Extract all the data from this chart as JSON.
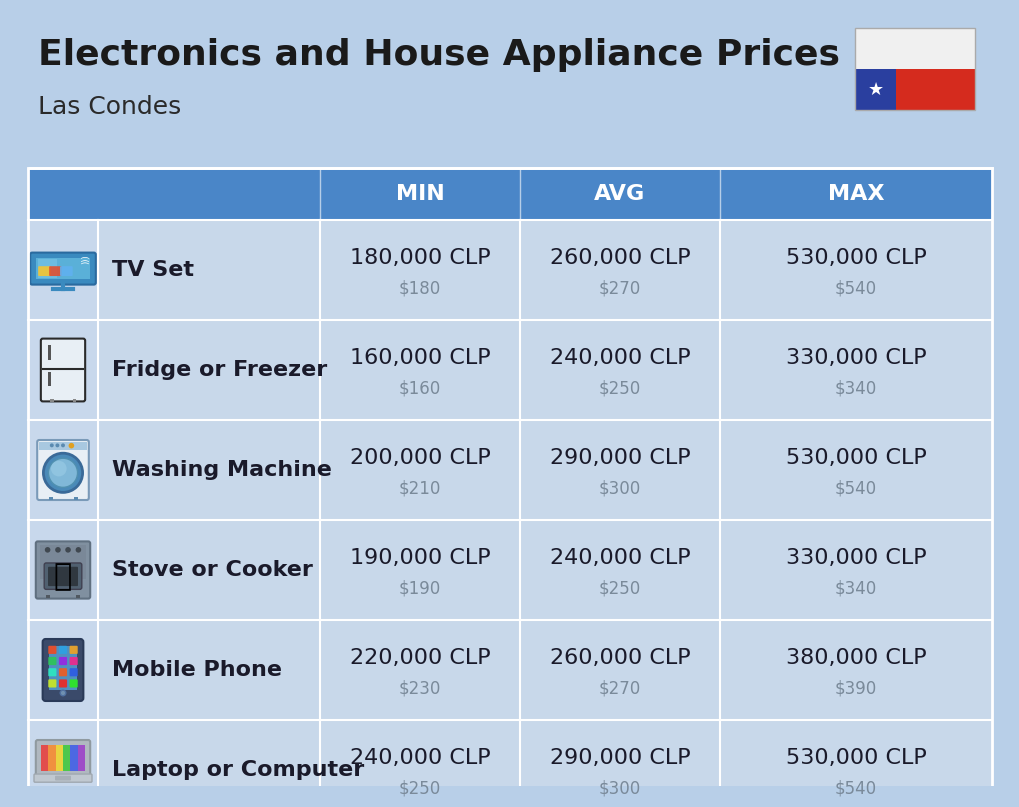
{
  "title": "Electronics and House Appliance Prices",
  "subtitle": "Las Condes",
  "background_color": "#b8cfe8",
  "header_color": "#4a86c8",
  "header_text_color": "#ffffff",
  "row_bg_color": "#c8d8ea",
  "divider_color": "#ffffff",
  "col_headers": [
    "MIN",
    "AVG",
    "MAX"
  ],
  "items": [
    {
      "name": "TV Set",
      "icon": "tv",
      "min_clp": "180,000 CLP",
      "min_usd": "$180",
      "avg_clp": "260,000 CLP",
      "avg_usd": "$270",
      "max_clp": "530,000 CLP",
      "max_usd": "$540"
    },
    {
      "name": "Fridge or Freezer",
      "icon": "fridge",
      "min_clp": "160,000 CLP",
      "min_usd": "$160",
      "avg_clp": "240,000 CLP",
      "avg_usd": "$250",
      "max_clp": "330,000 CLP",
      "max_usd": "$340"
    },
    {
      "name": "Washing Machine",
      "icon": "washing",
      "min_clp": "200,000 CLP",
      "min_usd": "$210",
      "avg_clp": "290,000 CLP",
      "avg_usd": "$300",
      "max_clp": "530,000 CLP",
      "max_usd": "$540"
    },
    {
      "name": "Stove or Cooker",
      "icon": "stove",
      "min_clp": "190,000 CLP",
      "min_usd": "$190",
      "avg_clp": "240,000 CLP",
      "avg_usd": "$250",
      "max_clp": "330,000 CLP",
      "max_usd": "$340"
    },
    {
      "name": "Mobile Phone",
      "icon": "phone",
      "min_clp": "220,000 CLP",
      "min_usd": "$230",
      "avg_clp": "260,000 CLP",
      "avg_usd": "$270",
      "max_clp": "380,000 CLP",
      "max_usd": "$390"
    },
    {
      "name": "Laptop or Computer",
      "icon": "laptop",
      "min_clp": "240,000 CLP",
      "min_usd": "$250",
      "avg_clp": "290,000 CLP",
      "avg_usd": "$300",
      "max_clp": "530,000 CLP",
      "max_usd": "$540"
    }
  ],
  "clp_fontsize": 16,
  "usd_fontsize": 12,
  "name_fontsize": 16,
  "header_fontsize": 16,
  "title_fontsize": 26,
  "subtitle_fontsize": 18
}
